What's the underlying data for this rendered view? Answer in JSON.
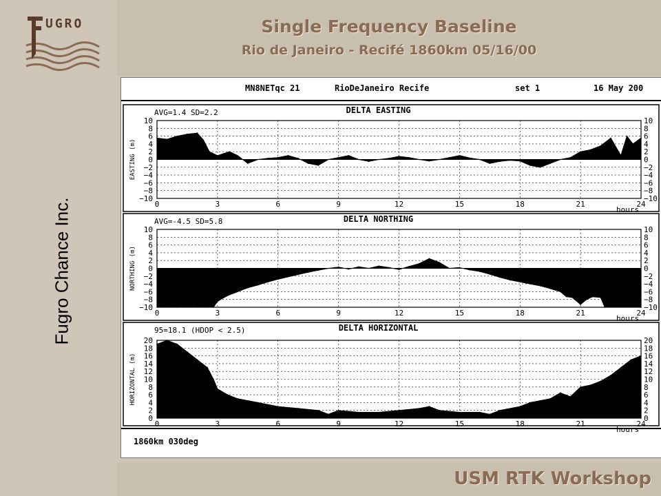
{
  "header": {
    "title": "Single Frequency Baseline",
    "subtitle": "Rio de Janeiro - Recifé 1860km 05/16/00"
  },
  "sidebar": {
    "company": "Fugro Chance Inc.",
    "logo_text": "UGRO"
  },
  "footer": {
    "text": "USM  RTK Workshop"
  },
  "colors": {
    "accent": "#8a6b54",
    "background": "#cfc6b8",
    "plot": "#000000"
  },
  "chart_header": {
    "station": "MN8NETqc 21",
    "route": "RioDeJaneiro Recife",
    "set": "set 1",
    "date": "16 May 200"
  },
  "chart_footer": "1860km 030deg",
  "chart_data": [
    {
      "type": "area",
      "title": "DELTA EASTING",
      "stats": "AVG=1.4 SD=2.2",
      "ylabel": "EASTING (m)",
      "xlabel": "hours",
      "ylim": [
        -10,
        10
      ],
      "yticks": [
        "10",
        "8",
        "6",
        "4",
        "2",
        "0",
        "−2",
        "−4",
        "−6",
        "−8",
        "−10"
      ],
      "xlim": [
        0,
        24
      ],
      "xticks": [
        "0",
        "3",
        "6",
        "9",
        "12",
        "15",
        "18",
        "21",
        "24"
      ],
      "grid": true,
      "x": [
        0,
        0.5,
        1,
        1.5,
        2,
        2.3,
        2.6,
        3,
        3.3,
        3.6,
        4,
        4.5,
        5,
        5.5,
        6,
        6.5,
        7,
        7.5,
        8,
        8.5,
        9,
        9.5,
        10,
        10.5,
        11,
        11.5,
        12,
        12.5,
        13,
        13.5,
        14,
        14.5,
        15,
        15.5,
        16,
        16.5,
        17,
        17.5,
        18,
        18.5,
        19,
        19.5,
        20,
        20.5,
        21,
        21.5,
        22,
        22.5,
        23,
        23.3,
        23.6,
        24
      ],
      "values": [
        5.5,
        5.2,
        6,
        6.5,
        6.8,
        5,
        2,
        1,
        1.5,
        2,
        1,
        -1,
        0,
        0.3,
        0.5,
        1,
        0.3,
        -1,
        -1.5,
        0,
        0.5,
        1,
        0,
        -0.5,
        0,
        0.3,
        0.8,
        0.5,
        0,
        -0.4,
        0,
        0.5,
        1,
        0.4,
        0,
        -1,
        -0.5,
        -0.2,
        -0.4,
        -1.5,
        -2,
        -1,
        0,
        0.5,
        2,
        2.5,
        3.5,
        5.5,
        1,
        6,
        4,
        5.5
      ]
    },
    {
      "type": "area",
      "title": "DELTA NORTHING",
      "stats": "AVG=-4.5 SD=5.8",
      "ylabel": "NORTHING (m)",
      "xlabel": "hours",
      "ylim": [
        -10,
        10
      ],
      "yticks": [
        "10",
        "8",
        "6",
        "4",
        "2",
        "0",
        "−2",
        "−4",
        "−6",
        "−8",
        "−10"
      ],
      "xlim": [
        0,
        24
      ],
      "xticks": [
        "0",
        "3",
        "6",
        "9",
        "12",
        "15",
        "18",
        "21",
        "24"
      ],
      "grid": true,
      "x": [
        0,
        0.5,
        1,
        1.5,
        2,
        2.5,
        2.8,
        3,
        3.5,
        4,
        4.5,
        5,
        5.5,
        6,
        6.5,
        7,
        7.5,
        8,
        8.5,
        9,
        9.5,
        10,
        10.5,
        11,
        11.5,
        12,
        12.5,
        13,
        13.5,
        14,
        14.5,
        15,
        15.5,
        16,
        16.5,
        17,
        17.5,
        18,
        18.5,
        19,
        19.5,
        20,
        20.3,
        20.6,
        21,
        21.3,
        21.6,
        22,
        22.2,
        24
      ],
      "values": [
        -10,
        -10,
        -10,
        -10,
        -10,
        -10,
        -10,
        -8.5,
        -7,
        -6,
        -5,
        -4.3,
        -3.5,
        -2.8,
        -2.2,
        -1.6,
        -1,
        -0.5,
        0,
        0.3,
        -0.2,
        0.4,
        0,
        0.6,
        0.2,
        -0.3,
        0.5,
        1.2,
        2.5,
        1.5,
        0,
        0.2,
        -0.4,
        -0.8,
        -1.5,
        -2.3,
        -3,
        -3.5,
        -4,
        -4.5,
        -5.2,
        -6,
        -7.3,
        -7.5,
        -9.3,
        -8,
        -7.3,
        -7.5,
        -10,
        -10
      ]
    },
    {
      "type": "area",
      "title": "DELTA HORIZONTAL",
      "stats": "95=18.1 (HDOP < 2.5)",
      "ylabel": "HORIZONTAL (m)",
      "xlabel": "hours",
      "ylim": [
        0,
        20
      ],
      "yticks": [
        "20",
        "18",
        "16",
        "14",
        "12",
        "10",
        "8",
        "6",
        "4",
        "2",
        "0"
      ],
      "xlim": [
        0,
        24
      ],
      "xticks": [
        "0",
        "3",
        "6",
        "9",
        "12",
        "15",
        "18",
        "21",
        "24"
      ],
      "grid": true,
      "x": [
        0,
        0.5,
        1,
        1.5,
        2,
        2.5,
        2.8,
        3,
        3.5,
        4,
        5,
        6,
        7,
        8,
        8.5,
        9,
        10,
        11,
        12,
        13,
        13.5,
        14,
        15,
        16,
        16.5,
        17,
        18,
        18.5,
        19,
        19.5,
        20,
        20.5,
        21,
        21.5,
        22,
        22.5,
        23,
        23.5,
        24
      ],
      "values": [
        19,
        20,
        19,
        17,
        15,
        13,
        10,
        7.5,
        6,
        5,
        4,
        3,
        2.5,
        2,
        1,
        2,
        1.5,
        1.5,
        2,
        2.5,
        3,
        2,
        1.5,
        1.5,
        1,
        2,
        3,
        4,
        4.5,
        5,
        6.5,
        5.5,
        8,
        8.5,
        9.5,
        11,
        13,
        15,
        16
      ]
    }
  ]
}
